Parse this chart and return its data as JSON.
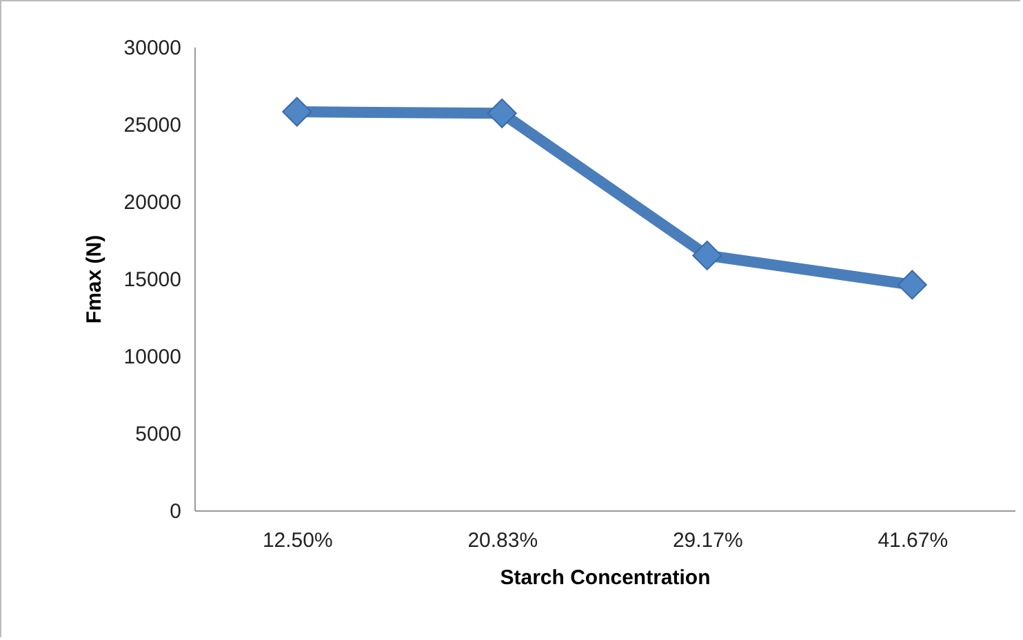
{
  "chart_data": {
    "type": "line",
    "xlabel": "Starch Concentration",
    "ylabel": "Fmax (N)",
    "categories": [
      "12.50%",
      "20.83%",
      "29.17%",
      "41.67%"
    ],
    "series": [
      {
        "color": "#4a7ebb",
        "values": [
          25800,
          25700,
          16500,
          14600
        ]
      }
    ],
    "ylim": [
      0,
      30000
    ],
    "yticks": [
      0,
      5000,
      10000,
      15000,
      20000,
      25000,
      30000
    ],
    "marker": "diamond",
    "line_style": "solid"
  }
}
